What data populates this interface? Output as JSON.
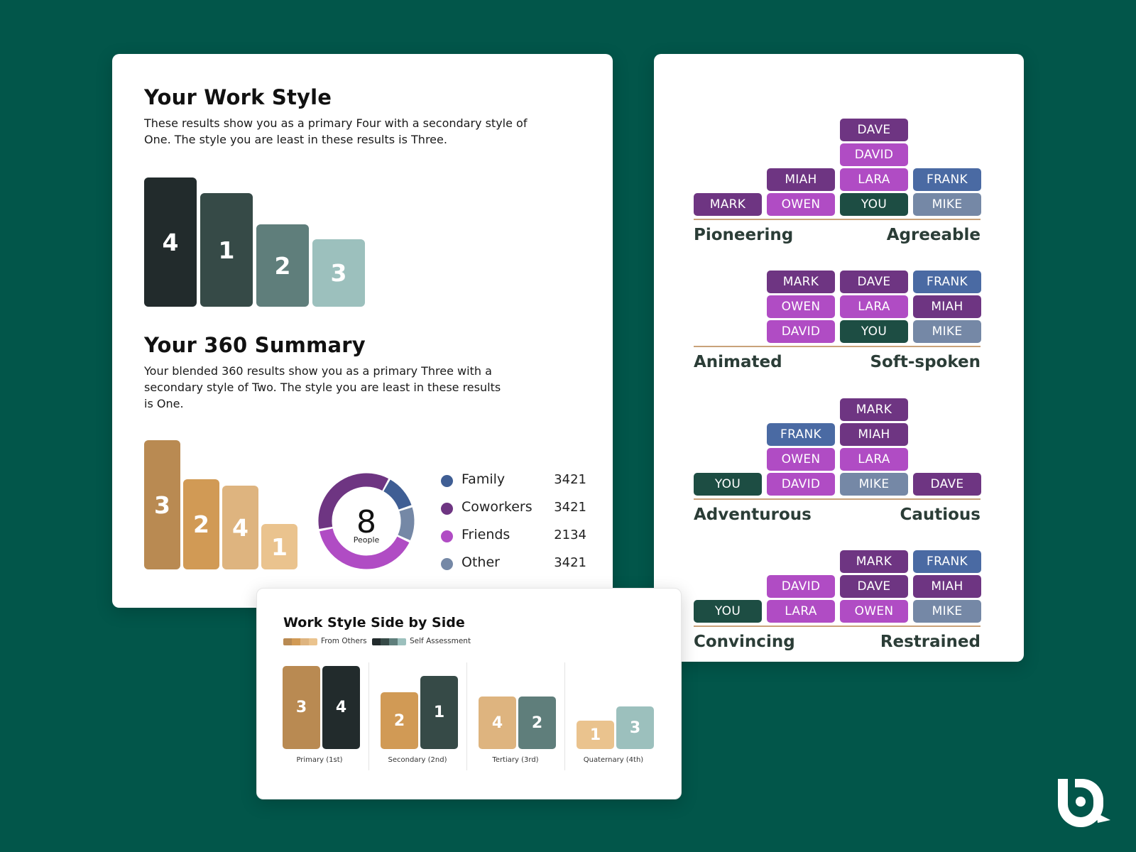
{
  "work_style": {
    "title": "Your Work Style",
    "description": "These results show you as a primary Four with a secondary style of One. The style you are least in these results is Three.",
    "bars": [
      {
        "label": "4",
        "level": 1.0,
        "color": "#222b2c"
      },
      {
        "label": "1",
        "level": 0.88,
        "color": "#364a47"
      },
      {
        "label": "2",
        "level": 0.64,
        "color": "#5f7e7b"
      },
      {
        "label": "3",
        "level": 0.52,
        "color": "#9cc0bd"
      }
    ]
  },
  "summary_360": {
    "title": "Your 360 Summary",
    "description": "Your blended 360 results show you as a primary Three with a secondary style of Two. The style you are least in these results is One.",
    "bars": [
      {
        "label": "3",
        "level": 1.0,
        "color": "#b98a52"
      },
      {
        "label": "2",
        "level": 0.7,
        "color": "#d19a55"
      },
      {
        "label": "4",
        "level": 0.65,
        "color": "#deb47f"
      },
      {
        "label": "1",
        "level": 0.35,
        "color": "#eac38e"
      }
    ],
    "donut": {
      "value": "8",
      "caption": "People",
      "segments": [
        {
          "name": "Family",
          "share": 0.12,
          "color": "#3f5e94"
        },
        {
          "name": "Other",
          "share": 0.12,
          "color": "#7588a6"
        },
        {
          "name": "Friends",
          "share": 0.4,
          "color": "#b04cc4"
        },
        {
          "name": "Coworkers",
          "share": 0.36,
          "color": "#6e3582"
        }
      ]
    },
    "legend": [
      {
        "label": "Family",
        "value": "3421",
        "color": "#3f5e94"
      },
      {
        "label": "Coworkers",
        "value": "3421",
        "color": "#6e3582"
      },
      {
        "label": "Friends",
        "value": "2134",
        "color": "#b04cc4"
      },
      {
        "label": "Other",
        "value": "3421",
        "color": "#7588a6"
      }
    ]
  },
  "chip_colors": {
    "purple": "#6e3582",
    "magenta": "#b04cc4",
    "blue": "#4a6aa3",
    "gray": "#7588a6",
    "green": "#1d4d43"
  },
  "spectra": [
    {
      "left": "Pioneering",
      "right": "Agreeable",
      "columns": [
        [
          {
            "name": "MARK",
            "color": "purple"
          }
        ],
        [
          {
            "name": "OWEN",
            "color": "magenta"
          },
          {
            "name": "MIAH",
            "color": "purple"
          }
        ],
        [
          {
            "name": "YOU",
            "color": "green"
          },
          {
            "name": "LARA",
            "color": "magenta"
          },
          {
            "name": "DAVID",
            "color": "magenta"
          },
          {
            "name": "DAVE",
            "color": "purple"
          }
        ],
        [
          {
            "name": "MIKE",
            "color": "gray"
          },
          {
            "name": "FRANK",
            "color": "blue"
          }
        ]
      ]
    },
    {
      "left": "Animated",
      "right": "Soft-spoken",
      "columns": [
        [],
        [
          {
            "name": "DAVID",
            "color": "magenta"
          },
          {
            "name": "OWEN",
            "color": "magenta"
          },
          {
            "name": "MARK",
            "color": "purple"
          }
        ],
        [
          {
            "name": "YOU",
            "color": "green"
          },
          {
            "name": "LARA",
            "color": "magenta"
          },
          {
            "name": "DAVE",
            "color": "purple"
          }
        ],
        [
          {
            "name": "MIKE",
            "color": "gray"
          },
          {
            "name": "MIAH",
            "color": "purple"
          },
          {
            "name": "FRANK",
            "color": "blue"
          }
        ]
      ]
    },
    {
      "left": "Adventurous",
      "right": "Cautious",
      "columns": [
        [
          {
            "name": "YOU",
            "color": "green"
          }
        ],
        [
          {
            "name": "DAVID",
            "color": "magenta"
          },
          {
            "name": "OWEN",
            "color": "magenta"
          },
          {
            "name": "FRANK",
            "color": "blue"
          }
        ],
        [
          {
            "name": "MIKE",
            "color": "gray"
          },
          {
            "name": "LARA",
            "color": "magenta"
          },
          {
            "name": "MIAH",
            "color": "purple"
          },
          {
            "name": "MARK",
            "color": "purple"
          }
        ],
        [
          {
            "name": "DAVE",
            "color": "purple"
          }
        ]
      ]
    },
    {
      "left": "Convincing",
      "right": "Restrained",
      "columns": [
        [
          {
            "name": "YOU",
            "color": "green"
          }
        ],
        [
          {
            "name": "LARA",
            "color": "magenta"
          },
          {
            "name": "DAVID",
            "color": "magenta"
          }
        ],
        [
          {
            "name": "OWEN",
            "color": "magenta"
          },
          {
            "name": "DAVE",
            "color": "purple"
          },
          {
            "name": "MARK",
            "color": "purple"
          }
        ],
        [
          {
            "name": "MIKE",
            "color": "gray"
          },
          {
            "name": "MIAH",
            "color": "purple"
          },
          {
            "name": "FRANK",
            "color": "blue"
          }
        ]
      ]
    }
  ],
  "side_by_side": {
    "title": "Work Style Side by Side",
    "legend_others": "From Others",
    "legend_self": "Self Assessment",
    "others_colors": [
      "#b98a52",
      "#d19a55",
      "#deb47f",
      "#eac38e"
    ],
    "self_colors": [
      "#222b2c",
      "#364a47",
      "#5f7e7b",
      "#9cc0bd"
    ],
    "groups": [
      {
        "label": "Primary (1st)",
        "others": {
          "value": "3",
          "level": 1.0,
          "color": "#b98a52"
        },
        "self": {
          "value": "4",
          "level": 1.0,
          "color": "#222b2c"
        }
      },
      {
        "label": "Secondary (2nd)",
        "others": {
          "value": "2",
          "level": 0.68,
          "color": "#d19a55"
        },
        "self": {
          "value": "1",
          "level": 0.88,
          "color": "#364a47"
        }
      },
      {
        "label": "Tertiary (3rd)",
        "others": {
          "value": "4",
          "level": 0.63,
          "color": "#deb47f"
        },
        "self": {
          "value": "2",
          "level": 0.63,
          "color": "#5f7e7b"
        }
      },
      {
        "label": "Quaternary (4th)",
        "others": {
          "value": "1",
          "level": 0.34,
          "color": "#eac38e"
        },
        "self": {
          "value": "3",
          "level": 0.51,
          "color": "#9cc0bd"
        }
      }
    ]
  }
}
